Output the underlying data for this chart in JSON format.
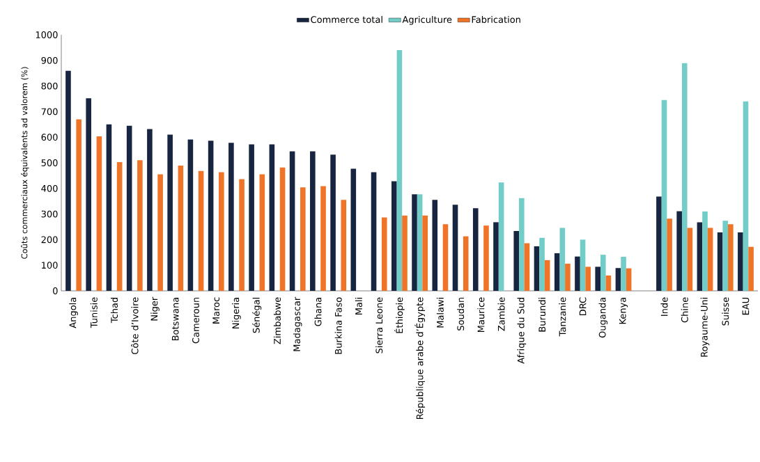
{
  "chart_data": {
    "type": "bar",
    "ylabel": "Coûts commerciaux équivalents ad valorem (%)",
    "categories": [
      "Angola",
      "Tunisie",
      "Tchad",
      "Côte d’Ivoire",
      "Niger",
      "Botswana",
      "Cameroun",
      "Maroc",
      "Nigeria",
      "Sénégal",
      "Zimbabwe",
      "Madagascar",
      "Ghana",
      "Burkina Faso",
      "Mali",
      "Sierra Leone",
      "Éthiopie",
      "République arabe d’Égypte",
      "Malawi",
      "Soudan",
      "Maurice",
      "Zambie",
      "Afrique du Sud",
      "Burundi",
      "Tanzanie",
      "DRC",
      "Ouganda",
      "Kenya",
      null,
      "Inde",
      "Chine",
      "Royaume-Uni",
      "Suisse",
      "EAU"
    ],
    "series": [
      {
        "name": "Commerce total",
        "color": "#172540",
        "values": [
          860,
          752,
          650,
          645,
          632,
          610,
          591,
          586,
          578,
          572,
          572,
          545,
          545,
          532,
          477,
          463,
          428,
          377,
          355,
          336,
          323,
          268,
          234,
          174,
          147,
          134,
          94,
          89,
          null,
          368,
          311,
          268,
          228,
          228
        ]
      },
      {
        "name": "Agriculture",
        "color": "#72cdc8",
        "values": [
          null,
          null,
          null,
          null,
          null,
          null,
          null,
          null,
          null,
          null,
          null,
          null,
          null,
          null,
          null,
          null,
          940,
          377,
          null,
          null,
          null,
          423,
          362,
          207,
          246,
          200,
          141,
          133,
          null,
          745,
          889,
          310,
          274,
          740
        ]
      },
      {
        "name": "Fabrication",
        "color": "#f07427",
        "values": [
          670,
          603,
          503,
          510,
          455,
          489,
          468,
          463,
          436,
          455,
          482,
          404,
          409,
          355,
          null,
          287,
          294,
          294,
          260,
          213,
          255,
          null,
          186,
          120,
          106,
          94,
          60,
          88,
          null,
          282,
          246,
          246,
          260,
          172
        ]
      }
    ],
    "ylim": [
      0,
      1000
    ],
    "yticks": [
      0,
      100,
      200,
      300,
      400,
      500,
      600,
      700,
      800,
      900,
      1000
    ],
    "legend": "top"
  }
}
